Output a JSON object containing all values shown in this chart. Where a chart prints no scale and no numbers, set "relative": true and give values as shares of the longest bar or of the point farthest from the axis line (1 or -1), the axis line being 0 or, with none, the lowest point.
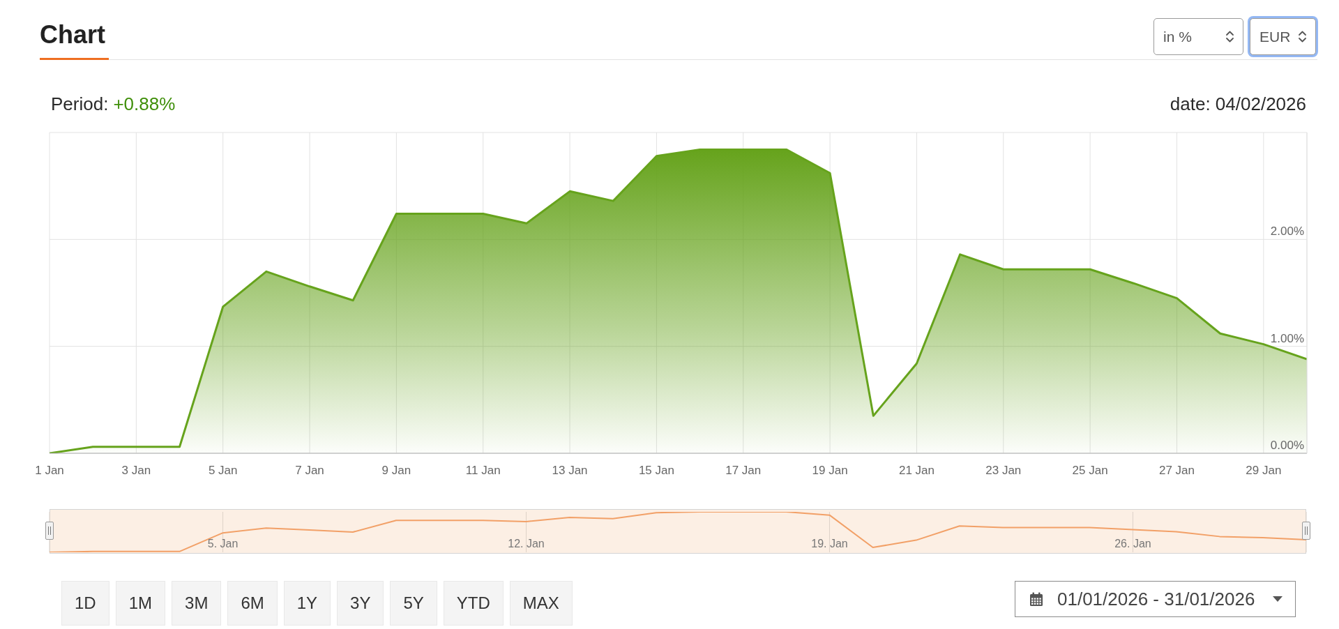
{
  "chart_data": [
    {
      "type": "area",
      "title": "Chart",
      "annotations": [
        "Period:",
        "+0.88%",
        "date: 04/02/2026"
      ],
      "x": [
        "2026-01-01",
        "2026-01-02",
        "2026-01-03",
        "2026-01-04",
        "2026-01-05",
        "2026-01-06",
        "2026-01-07",
        "2026-01-08",
        "2026-01-09",
        "2026-01-10",
        "2026-01-11",
        "2026-01-12",
        "2026-01-13",
        "2026-01-14",
        "2026-01-15",
        "2026-01-16",
        "2026-01-17",
        "2026-01-18",
        "2026-01-19",
        "2026-01-20",
        "2026-01-21",
        "2026-01-22",
        "2026-01-23",
        "2026-01-24",
        "2026-01-25",
        "2026-01-26",
        "2026-01-27",
        "2026-01-28",
        "2026-01-29",
        "2026-01-30"
      ],
      "values": [
        0,
        0.06,
        0.06,
        0.06,
        1.37,
        1.7,
        1.56,
        1.43,
        2.24,
        2.24,
        2.24,
        2.15,
        2.45,
        2.36,
        2.78,
        2.84,
        2.84,
        2.84,
        2.62,
        0.35,
        0.84,
        1.86,
        1.72,
        1.72,
        1.72,
        1.59,
        1.45,
        1.12,
        1.02,
        0.88
      ],
      "color": "#66a31c",
      "xlim": [
        "2026-01-01",
        "2026-01-30"
      ],
      "xticks": [
        {
          "value": "2026-01-01",
          "label": "1 Jan"
        },
        {
          "value": "2026-01-03",
          "label": "3 Jan"
        },
        {
          "value": "2026-01-05",
          "label": "5 Jan"
        },
        {
          "value": "2026-01-07",
          "label": "7 Jan"
        },
        {
          "value": "2026-01-09",
          "label": "9 Jan"
        },
        {
          "value": "2026-01-11",
          "label": "11 Jan"
        },
        {
          "value": "2026-01-13",
          "label": "13 Jan"
        },
        {
          "value": "2026-01-15",
          "label": "15 Jan"
        },
        {
          "value": "2026-01-17",
          "label": "17 Jan"
        },
        {
          "value": "2026-01-19",
          "label": "19 Jan"
        },
        {
          "value": "2026-01-21",
          "label": "21 Jan"
        },
        {
          "value": "2026-01-23",
          "label": "23 Jan"
        },
        {
          "value": "2026-01-25",
          "label": "25 Jan"
        },
        {
          "value": "2026-01-27",
          "label": "27 Jan"
        },
        {
          "value": "2026-01-29",
          "label": "29 Jan"
        }
      ],
      "ylim": [
        0,
        3
      ],
      "yticks": [
        {
          "value": 0,
          "label": "0.00%"
        },
        {
          "value": 1,
          "label": "1.00%"
        },
        {
          "value": 2,
          "label": "2.00%"
        },
        {
          "value": 3,
          "label": null
        }
      ],
      "grid": true
    },
    {
      "type": "line",
      "relative": true,
      "x": [
        "2026-01-01",
        "2026-01-02",
        "2026-01-03",
        "2026-01-04",
        "2026-01-05",
        "2026-01-06",
        "2026-01-07",
        "2026-01-08",
        "2026-01-09",
        "2026-01-10",
        "2026-01-11",
        "2026-01-12",
        "2026-01-13",
        "2026-01-14",
        "2026-01-15",
        "2026-01-16",
        "2026-01-17",
        "2026-01-18",
        "2026-01-19",
        "2026-01-20",
        "2026-01-21",
        "2026-01-22",
        "2026-01-23",
        "2026-01-24",
        "2026-01-25",
        "2026-01-26",
        "2026-01-27",
        "2026-01-28",
        "2026-01-29",
        "2026-01-30"
      ],
      "values": [
        0,
        0.02,
        0.02,
        0.02,
        0.48,
        0.6,
        0.55,
        0.5,
        0.79,
        0.79,
        0.79,
        0.76,
        0.86,
        0.83,
        0.98,
        1,
        1,
        1,
        0.92,
        0.12,
        0.3,
        0.65,
        0.61,
        0.61,
        0.61,
        0.56,
        0.51,
        0.39,
        0.36,
        0.31
      ],
      "color": "#f2a067",
      "xlim": [
        "2026-01-01",
        "2026-01-30"
      ],
      "xticks": [
        {
          "value": "2026-01-05",
          "label": "5. Jan"
        },
        {
          "value": "2026-01-12",
          "label": "12. Jan"
        },
        {
          "value": "2026-01-19",
          "label": "19. Jan"
        },
        {
          "value": "2026-01-26",
          "label": "26. Jan"
        }
      ],
      "grid": "x"
    },
    {
      "type": "other",
      "annotations": [
        "in %",
        "EUR",
        "1D",
        "1M",
        "3M",
        "6M",
        "1Y",
        "3Y",
        "5Y",
        "YTD",
        "MAX",
        "01/01/2026 - 31/01/2026"
      ]
    }
  ]
}
